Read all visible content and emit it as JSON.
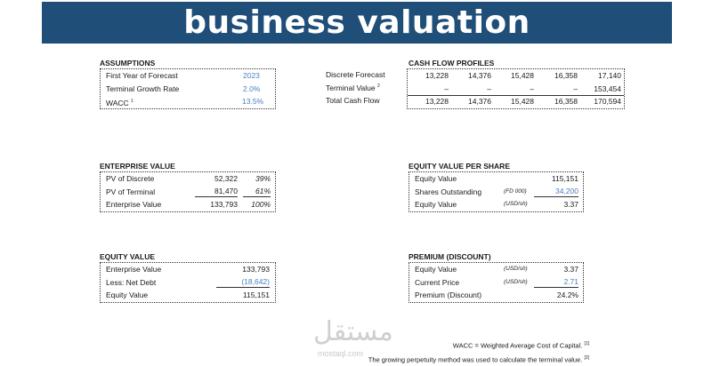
{
  "title": "business valuation",
  "assumptions": {
    "heading": "ASSUMPTIONS",
    "rows": [
      {
        "label": "First Year of Forecast",
        "value": "2023"
      },
      {
        "label": "Terminal Growth Rate",
        "value": "2.0%"
      },
      {
        "label": "WACC",
        "sup": "1",
        "value": "13.5%"
      }
    ]
  },
  "cash_flow": {
    "heading": "CASH FLOW PROFILES",
    "rows": [
      {
        "label": "Discrete Forecast",
        "values": [
          "13,228",
          "14,376",
          "15,428",
          "16,358",
          "17,140"
        ]
      },
      {
        "label": "Terminal Value",
        "sup": "2",
        "values": [
          "–",
          "–",
          "–",
          "–",
          "153,454"
        ]
      },
      {
        "label": "Total Cash Flow",
        "values": [
          "13,228",
          "14,376",
          "15,428",
          "16,358",
          "170,594"
        ]
      }
    ]
  },
  "enterprise_value": {
    "heading": "ENTERPRISE VALUE",
    "rows": [
      {
        "label": "PV of Discrete",
        "value": "52,322",
        "pct": "39%"
      },
      {
        "label": "PV of Terminal",
        "value": "81,470",
        "pct": "61%"
      },
      {
        "label": "Enterprise Value",
        "value": "133,793",
        "pct": "100%"
      }
    ]
  },
  "equity_per_share": {
    "heading": "EQUITY VALUE PER SHARE",
    "rows": [
      {
        "label": "Equity Value",
        "unit": "",
        "value": "115,151"
      },
      {
        "label": "Shares Outstanding",
        "unit": "(FD 000)",
        "value": "34,200"
      },
      {
        "label": "Equity Value",
        "unit": "(USD/sh)",
        "value": "3.37"
      }
    ]
  },
  "equity_value": {
    "heading": "EQUITY VALUE",
    "rows": [
      {
        "label": "Enterprise Value",
        "value": "133,793"
      },
      {
        "label": "Less: Net Debt",
        "value": "(18,642)"
      },
      {
        "label": "Equity Value",
        "value": "115,151"
      }
    ]
  },
  "premium": {
    "heading": "PREMIUM (DISCOUNT)",
    "rows": [
      {
        "label": "Equity Value",
        "unit": "(USD/sh)",
        "value": "3.37"
      },
      {
        "label": "Current Price",
        "unit": "(USD/sh)",
        "value": "2.71"
      },
      {
        "label": "Premium (Discount)",
        "unit": "",
        "value": "24.2%"
      }
    ]
  },
  "footnotes": [
    {
      "text": "WACC = Weighted Average Cost of Capital.",
      "mark": "[1]"
    },
    {
      "text": "The growing perpetuity method was used to calculate the terminal value.",
      "mark": "[2]"
    }
  ],
  "watermark": {
    "arabic": "مستقل",
    "latin": "mostaql.com"
  }
}
